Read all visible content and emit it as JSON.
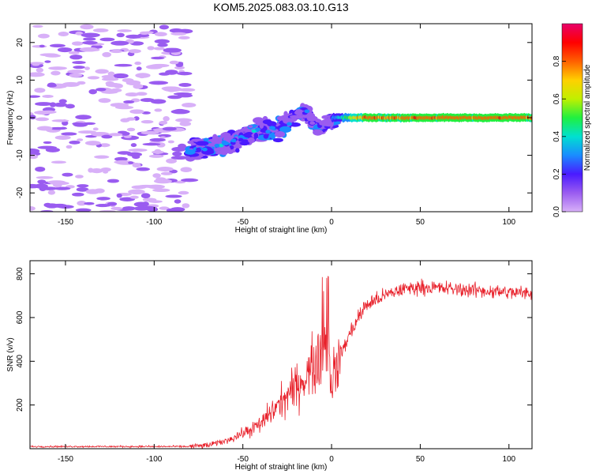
{
  "figure": {
    "title": "KOM5.2025.083.03.10.G13"
  },
  "chart_data": [
    {
      "type": "heatmap",
      "xlabel": "Height of straight line (km)",
      "ylabel": "Frequency (Hz)",
      "xlim": [
        -170,
        113
      ],
      "ylim": [
        -25,
        25
      ],
      "xticks": [
        -150,
        -100,
        -50,
        0,
        50,
        100
      ],
      "yticks": [
        -20,
        -10,
        0,
        10,
        20
      ],
      "colorbar": {
        "label": "Normalized spectral amplitude",
        "range": [
          0,
          1
        ],
        "ticks": [
          0.0,
          0.2,
          0.4,
          0.6,
          0.8
        ],
        "colormap": [
          "#d8b0f8",
          "#9a5cf0",
          "#4a1aff",
          "#1a8cff",
          "#00e0d0",
          "#20f040",
          "#c0f000",
          "#ffd000",
          "#ff6000",
          "#ff0000",
          "#e8006a"
        ]
      },
      "features": {
        "noise_region_x": [
          -170,
          -80
        ],
        "transition_region_x": [
          -80,
          0
        ],
        "carrier_region_x": [
          0,
          113
        ],
        "carrier_frequency_hz": 0
      },
      "grid": false
    },
    {
      "type": "line",
      "xlabel": "Height of straight line (km)",
      "ylabel": "SNR (v/v)",
      "xlim": [
        -170,
        113
      ],
      "ylim": [
        0,
        860
      ],
      "xticks": [
        -150,
        -100,
        -50,
        0,
        50,
        100
      ],
      "yticks": [
        200,
        400,
        600,
        800
      ],
      "series": [
        {
          "color": "#e8202a",
          "envelope_x": [
            -170,
            -80,
            -70,
            -60,
            -50,
            -40,
            -35,
            -30,
            -25,
            -20,
            -15,
            -10,
            -5,
            -2,
            0,
            5,
            10,
            15,
            20,
            30,
            40,
            50,
            60,
            70,
            80,
            90,
            100,
            113
          ],
          "envelope_y": [
            10,
            10,
            15,
            35,
            70,
            110,
            160,
            200,
            240,
            280,
            330,
            380,
            450,
            500,
            300,
            430,
            520,
            600,
            660,
            700,
            730,
            740,
            735,
            730,
            725,
            720,
            715,
            710
          ]
        }
      ],
      "grid": false
    }
  ]
}
